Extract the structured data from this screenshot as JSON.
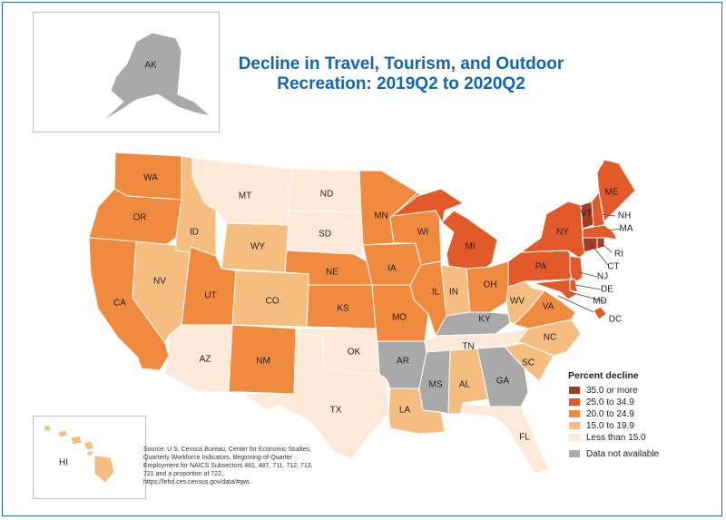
{
  "title": {
    "line1": "Decline in Travel, Tourism, and Outdoor",
    "line2": "Recreation: 2019Q2 to 2020Q2"
  },
  "colors": {
    "c35": "#a33b22",
    "c25": "#e25a2a",
    "c20": "#f08a3e",
    "c15": "#f6bd81",
    "c0": "#fde9d8",
    "na": "#a9a9a9",
    "border": "#ffffff",
    "frame": "#2a6db1",
    "title": "#1466b3"
  },
  "legend": {
    "title": "Percent decline",
    "items": [
      {
        "key": "c35",
        "label": "35.0 or more"
      },
      {
        "key": "c25",
        "label": "25.0 to 34.9"
      },
      {
        "key": "c20",
        "label": "20.0 to 24.9"
      },
      {
        "key": "c15",
        "label": "15.0 to 19.9"
      },
      {
        "key": "c0",
        "label": "Less than 15.0"
      }
    ],
    "na_label": "Data not available"
  },
  "source": "Source: U.S. Census Bureau, Center for Economic Studies, Quarterly Workforce Indicators, Beginning-of-Quarter Employment for NAICS Subsectors 481, 487, 711, 712, 713, 721 and a proportion of 722, https://lehd.ces.census.gov/data/#qwi.",
  "states": [
    {
      "abbr": "WA",
      "cat": "c20"
    },
    {
      "abbr": "OR",
      "cat": "c20"
    },
    {
      "abbr": "CA",
      "cat": "c20"
    },
    {
      "abbr": "ID",
      "cat": "c15"
    },
    {
      "abbr": "NV",
      "cat": "c15"
    },
    {
      "abbr": "MT",
      "cat": "c0"
    },
    {
      "abbr": "WY",
      "cat": "c15"
    },
    {
      "abbr": "UT",
      "cat": "c20"
    },
    {
      "abbr": "AZ",
      "cat": "c0"
    },
    {
      "abbr": "CO",
      "cat": "c15"
    },
    {
      "abbr": "NM",
      "cat": "c20"
    },
    {
      "abbr": "ND",
      "cat": "c0"
    },
    {
      "abbr": "SD",
      "cat": "c0"
    },
    {
      "abbr": "NE",
      "cat": "c20"
    },
    {
      "abbr": "KS",
      "cat": "c20"
    },
    {
      "abbr": "OK",
      "cat": "c0"
    },
    {
      "abbr": "TX",
      "cat": "c0"
    },
    {
      "abbr": "MN",
      "cat": "c20"
    },
    {
      "abbr": "IA",
      "cat": "c20"
    },
    {
      "abbr": "MO",
      "cat": "c20"
    },
    {
      "abbr": "AR",
      "cat": "na"
    },
    {
      "abbr": "LA",
      "cat": "c15"
    },
    {
      "abbr": "WI",
      "cat": "c20"
    },
    {
      "abbr": "IL",
      "cat": "c20"
    },
    {
      "abbr": "MI",
      "cat": "c25"
    },
    {
      "abbr": "IN",
      "cat": "c15"
    },
    {
      "abbr": "OH",
      "cat": "c20"
    },
    {
      "abbr": "KY",
      "cat": "na"
    },
    {
      "abbr": "TN",
      "cat": "c0"
    },
    {
      "abbr": "MS",
      "cat": "na"
    },
    {
      "abbr": "AL",
      "cat": "c15"
    },
    {
      "abbr": "GA",
      "cat": "na"
    },
    {
      "abbr": "FL",
      "cat": "c0"
    },
    {
      "abbr": "SC",
      "cat": "c15"
    },
    {
      "abbr": "NC",
      "cat": "c15"
    },
    {
      "abbr": "VA",
      "cat": "c20"
    },
    {
      "abbr": "WV",
      "cat": "c15"
    },
    {
      "abbr": "PA",
      "cat": "c25"
    },
    {
      "abbr": "NY",
      "cat": "c25"
    },
    {
      "abbr": "VT",
      "cat": "c35"
    },
    {
      "abbr": "NH",
      "cat": "c25"
    },
    {
      "abbr": "ME",
      "cat": "c25"
    },
    {
      "abbr": "MA",
      "cat": "c25"
    },
    {
      "abbr": "RI",
      "cat": "c35"
    },
    {
      "abbr": "CT",
      "cat": "c35"
    },
    {
      "abbr": "NJ",
      "cat": "c25"
    },
    {
      "abbr": "DE",
      "cat": "c25"
    },
    {
      "abbr": "MD",
      "cat": "c25"
    },
    {
      "abbr": "DC",
      "cat": "c25"
    },
    {
      "abbr": "AK",
      "cat": "na"
    },
    {
      "abbr": "HI",
      "cat": "c15"
    }
  ]
}
